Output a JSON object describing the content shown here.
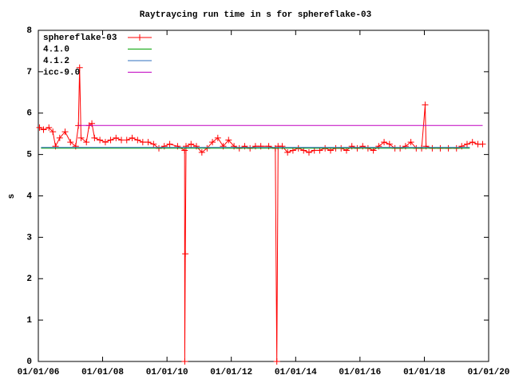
{
  "chart_data": {
    "type": "line",
    "title": "Raytraycing run time in s for sphereflake-03",
    "y_label": "s",
    "xlim": [
      "01/01/06",
      "01/01/20"
    ],
    "xticks": [
      "01/01/06",
      "01/01/08",
      "01/01/10",
      "01/01/12",
      "01/01/14",
      "01/01/16",
      "01/01/18",
      "01/01/20"
    ],
    "ylim": [
      0,
      8
    ],
    "yticks": [
      0,
      1,
      2,
      3,
      4,
      5,
      6,
      7,
      8
    ],
    "legend": "top-left",
    "series": [
      {
        "name": "sphereflake-03",
        "color": "#ff0000",
        "markers": true,
        "x": [
          "01/15/06",
          "03/01/06",
          "05/01/06",
          "06/15/06",
          "07/15/06",
          "09/01/06",
          "11/01/06",
          "01/01/07",
          "03/01/07",
          "04/01/07",
          "04/15/07",
          "05/01/07",
          "07/01/07",
          "08/01/07",
          "09/01/07",
          "10/01/07",
          "12/01/07",
          "02/01/08",
          "04/01/08",
          "06/01/08",
          "08/01/08",
          "10/01/08",
          "12/01/08",
          "02/01/09",
          "04/01/09",
          "06/01/09",
          "08/01/09",
          "10/01/09",
          "12/01/09",
          "02/01/10",
          "05/01/10",
          "07/20/10",
          "07/22/10",
          "07/28/10",
          "08/05/10",
          "10/01/10",
          "12/01/10",
          "02/01/11",
          "04/01/11",
          "06/01/11",
          "08/01/11",
          "10/01/11",
          "12/01/11",
          "02/01/12",
          "04/01/12",
          "06/01/12",
          "08/01/12",
          "10/01/12",
          "12/01/12",
          "03/01/13",
          "05/15/13",
          "06/01/13",
          "06/15/13",
          "08/01/13",
          "10/01/13",
          "12/01/13",
          "02/01/14",
          "04/01/14",
          "06/01/14",
          "08/01/14",
          "10/01/14",
          "12/01/14",
          "02/01/15",
          "04/01/15",
          "06/01/15",
          "08/01/15",
          "10/01/15",
          "12/01/15",
          "02/01/16",
          "04/01/16",
          "06/01/16",
          "08/01/16",
          "10/01/16",
          "12/01/16",
          "02/01/17",
          "04/01/17",
          "06/01/17",
          "08/01/17",
          "10/01/17",
          "12/01/17",
          "01/10/18",
          "01/20/18",
          "04/01/18",
          "07/01/18",
          "10/01/18",
          "01/01/19",
          "03/01/19",
          "05/01/19",
          "07/01/19",
          "09/01/19",
          "10/25/19"
        ],
        "values": [
          5.65,
          5.6,
          5.65,
          5.55,
          5.2,
          5.4,
          5.55,
          5.3,
          5.2,
          5.7,
          7.1,
          5.4,
          5.3,
          5.7,
          5.75,
          5.4,
          5.35,
          5.3,
          5.35,
          5.4,
          5.35,
          5.35,
          5.4,
          5.35,
          5.3,
          5.3,
          5.25,
          5.15,
          5.2,
          5.25,
          5.2,
          5.1,
          0,
          2.6,
          5.2,
          5.25,
          5.2,
          5.05,
          5.15,
          5.3,
          5.4,
          5.2,
          5.35,
          5.2,
          5.15,
          5.2,
          5.15,
          5.2,
          5.2,
          5.2,
          5.15,
          0,
          5.2,
          5.2,
          5.05,
          5.1,
          5.15,
          5.1,
          5.05,
          5.1,
          5.1,
          5.15,
          5.1,
          5.15,
          5.15,
          5.1,
          5.2,
          5.15,
          5.2,
          5.15,
          5.1,
          5.2,
          5.3,
          5.25,
          5.15,
          5.15,
          5.2,
          5.3,
          5.15,
          5.15,
          6.2,
          5.2,
          5.15,
          5.15,
          5.15,
          5.15,
          5.2,
          5.25,
          5.3,
          5.25,
          5.25
        ]
      },
      {
        "name": "4.1.0",
        "color": "#00a000",
        "x": [
          "02/01/06",
          "06/01/19"
        ],
        "values": [
          5.15,
          5.15
        ]
      },
      {
        "name": "4.1.2",
        "color": "#2f6fbf",
        "x": [
          "02/01/06",
          "06/01/19"
        ],
        "values": [
          5.17,
          5.17
        ]
      },
      {
        "name": "icc-9.0",
        "color": "#c000c0",
        "x": [
          "04/01/07",
          "10/25/19"
        ],
        "values": [
          5.7,
          5.7
        ]
      }
    ]
  }
}
